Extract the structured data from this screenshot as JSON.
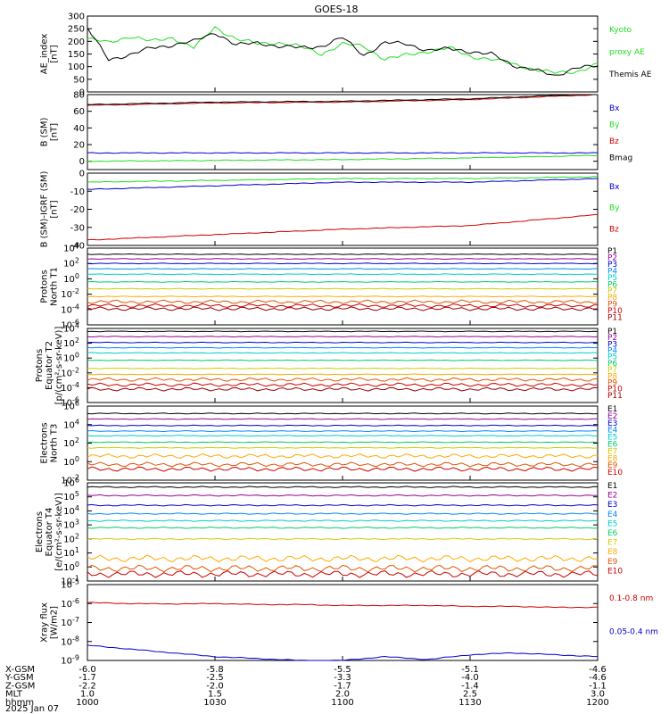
{
  "title": "GOES-18",
  "colors": {
    "black": "#000000",
    "green": "#22dd22",
    "red": "#cc0000",
    "blue": "#0000cc",
    "ch": [
      "#000000",
      "#990099",
      "#0000cc",
      "#0088ff",
      "#00cccc",
      "#00cc66",
      "#cccc00",
      "#ffaa00",
      "#dd5500",
      "#cc0000",
      "#990000"
    ]
  },
  "chart_data": [
    {
      "type": "line",
      "panel": "ae",
      "ylabel": [
        "AE_index",
        "[nT]"
      ],
      "ylim": [
        0,
        300
      ],
      "yticks": [
        "0",
        "50",
        "100",
        "150",
        "200",
        "250",
        "300"
      ],
      "legend": [
        {
          "name": "Kyoto",
          "color": "green"
        },
        {
          "name": "proxy AE",
          "color": "green"
        },
        {
          "name": "Themis AE",
          "color": "black"
        }
      ],
      "x": [
        0,
        5,
        10,
        15,
        20,
        25,
        30,
        35,
        40,
        45,
        50,
        55,
        60,
        65,
        70,
        75,
        80,
        85,
        90,
        95,
        100,
        105,
        110,
        115,
        120
      ],
      "series": [
        {
          "name": "Kyoto proxy AE",
          "color": "green",
          "values": [
            210,
            195,
            220,
            200,
            215,
            175,
            255,
            210,
            190,
            195,
            180,
            150,
            190,
            180,
            130,
            145,
            160,
            175,
            140,
            130,
            110,
            90,
            75,
            80,
            110
          ]
        },
        {
          "name": "Themis AE",
          "color": "black",
          "values": [
            250,
            130,
            145,
            175,
            185,
            200,
            235,
            185,
            195,
            180,
            175,
            180,
            215,
            145,
            195,
            190,
            165,
            170,
            160,
            150,
            105,
            90,
            60,
            100,
            100
          ]
        }
      ]
    },
    {
      "type": "line",
      "panel": "bsm",
      "ylabel": [
        "B (SM)",
        "[nT]"
      ],
      "ylim": [
        -10,
        80
      ],
      "yticks": [
        "0",
        "20",
        "40",
        "60",
        "80"
      ],
      "legend": [
        {
          "name": "Bx",
          "color": "blue"
        },
        {
          "name": "By",
          "color": "green"
        },
        {
          "name": "Bz",
          "color": "red"
        },
        {
          "name": "Bmag",
          "color": "black"
        }
      ],
      "x": [
        0,
        30,
        60,
        90,
        120
      ],
      "series": [
        {
          "name": "Bz",
          "color": "red",
          "values": [
            67,
            70,
            71,
            74,
            80
          ]
        },
        {
          "name": "Bmag",
          "color": "black",
          "values": [
            68,
            71,
            72,
            75,
            81
          ]
        },
        {
          "name": "Bx",
          "color": "blue",
          "values": [
            10,
            10,
            10,
            10,
            10
          ]
        },
        {
          "name": "By",
          "color": "green",
          "values": [
            0,
            1,
            2,
            4,
            7
          ]
        }
      ]
    },
    {
      "type": "line",
      "panel": "digrf",
      "ylabel": [
        "B (SM)-IGRF (SM)",
        "[nT]"
      ],
      "ylim": [
        -40,
        0
      ],
      "yticks": [
        "-40",
        "-30",
        "-20",
        "-10",
        "0"
      ],
      "legend": [
        {
          "name": "Bx",
          "color": "blue"
        },
        {
          "name": "By",
          "color": "green"
        },
        {
          "name": "Bz",
          "color": "red"
        }
      ],
      "x": [
        0,
        30,
        60,
        90,
        120
      ],
      "series": [
        {
          "name": "By",
          "color": "green",
          "values": [
            -5,
            -4,
            -3,
            -3,
            -2
          ]
        },
        {
          "name": "Bx",
          "color": "blue",
          "values": [
            -9,
            -7,
            -5,
            -5,
            -3
          ]
        },
        {
          "name": "Bz",
          "color": "red",
          "values": [
            -37,
            -34,
            -31,
            -29,
            -23
          ]
        }
      ]
    },
    {
      "type": "line",
      "panel": "pn",
      "log": true,
      "ylabel": [
        "Protons",
        "North T1"
      ],
      "ylim": [
        -6,
        4
      ],
      "yticks": [
        "10^4",
        "10^2",
        "10^0",
        "10^-2",
        "10^-4",
        "10^-6"
      ],
      "legend": [
        "P1",
        "P2",
        "P3",
        "P4",
        "P5",
        "P6",
        "P7",
        "P8",
        "P9",
        "P10",
        "P11"
      ],
      "levels": [
        3.2,
        2.6,
        2.0,
        1.3,
        0.6,
        -0.4,
        -1.3,
        -2.3,
        -3.0,
        -3.5,
        -3.9
      ]
    },
    {
      "type": "line",
      "panel": "pe",
      "log": true,
      "ylabel": [
        "Protons",
        "Equator T2",
        "[p/(cm²-s-sr-keV)]"
      ],
      "ylim": [
        -6,
        4
      ],
      "yticks": [
        "10^4",
        "10^2",
        "10^0",
        "10^-2",
        "10^-4",
        "10^-6"
      ],
      "legend": [
        "P1",
        "P2",
        "P3",
        "P4",
        "P5",
        "P6",
        "P7",
        "P8",
        "P9",
        "P10",
        "P11"
      ],
      "levels": [
        3.6,
        2.9,
        2.1,
        1.4,
        0.7,
        -0.3,
        -1.4,
        -2.2,
        -2.9,
        -3.6,
        -4.2
      ]
    },
    {
      "type": "line",
      "panel": "en",
      "log": true,
      "ylabel": [
        "Electrons",
        "North T3"
      ],
      "ylim": [
        -2,
        6
      ],
      "yticks": [
        "10^6",
        "10^4",
        "10^2",
        "10^0",
        "10^-2"
      ],
      "legend": [
        "E1",
        "E2",
        "E3",
        "E4",
        "E5",
        "E6",
        "E7",
        "E8",
        "E9",
        "E10"
      ],
      "levels": [
        5.2,
        4.6,
        3.9,
        3.3,
        2.8,
        2.1,
        1.5,
        0.6,
        -0.3,
        -0.8
      ]
    },
    {
      "type": "line",
      "panel": "ee",
      "log": true,
      "ylabel": [
        "Electrons",
        "Equator T4",
        "[e/(cm²-s-sr-keV)]"
      ],
      "ylim": [
        -1,
        6
      ],
      "yticks": [
        "10^6",
        "10^5",
        "10^4",
        "10^3",
        "10^2",
        "10^1",
        "10^0",
        "10^-1"
      ],
      "legend": [
        "E1",
        "E2",
        "E3",
        "E4",
        "E5",
        "E6",
        "E7",
        "E8",
        "E9",
        "E10"
      ],
      "levels": [
        5.7,
        5.1,
        4.4,
        3.8,
        3.3,
        2.8,
        2.0,
        0.6,
        -0.1,
        -0.5
      ]
    },
    {
      "type": "line",
      "panel": "xray",
      "log": true,
      "ylabel": [
        "Xray flux",
        "[W/m2]"
      ],
      "ylim": [
        -9,
        -5
      ],
      "yticks": [
        "10^-5",
        "10^-6",
        "10^-7",
        "10^-8",
        "10^-9"
      ],
      "legend": [
        {
          "name": "0.1-0.8 nm",
          "color": "red"
        },
        {
          "name": "0.05-0.4 nm",
          "color": "blue"
        }
      ],
      "x": [
        0,
        10,
        20,
        30,
        40,
        50,
        60,
        70,
        80,
        90,
        100,
        110,
        120
      ],
      "series": [
        {
          "name": "0.1-0.8 nm",
          "color": "red",
          "values": [
            -5.95,
            -6.0,
            -6.02,
            -6.0,
            -6.05,
            -6.05,
            -6.1,
            -6.1,
            -6.1,
            -6.15,
            -6.15,
            -6.2,
            -6.2
          ]
        },
        {
          "name": "0.05-0.4 nm",
          "color": "blue",
          "values": [
            -8.2,
            -8.4,
            -8.6,
            -8.8,
            -8.9,
            -9.0,
            -9.0,
            -8.8,
            -8.95,
            -8.7,
            -8.6,
            -8.7,
            -8.8
          ]
        }
      ]
    }
  ],
  "xaxis": {
    "rows": [
      {
        "label": "X-GSM",
        "values": [
          "-6.0",
          "-5.8",
          "-5.5",
          "-5.1",
          "-4.6"
        ]
      },
      {
        "label": "Y-GSM",
        "values": [
          "-1.7",
          "-2.5",
          "-3.3",
          "-4.0",
          "-4.6"
        ]
      },
      {
        "label": "Z-GSM",
        "values": [
          "-2.2",
          "-2.0",
          "-1.7",
          "-1.4",
          "-1.1"
        ]
      },
      {
        "label": "MLT",
        "values": [
          "1.0",
          "1.5",
          "2.0",
          "2.5",
          "3.0"
        ]
      },
      {
        "label": "hhmm",
        "values": [
          "1000",
          "1030",
          "1100",
          "1130",
          "1200"
        ]
      }
    ],
    "date": "2025 Jan 07"
  }
}
